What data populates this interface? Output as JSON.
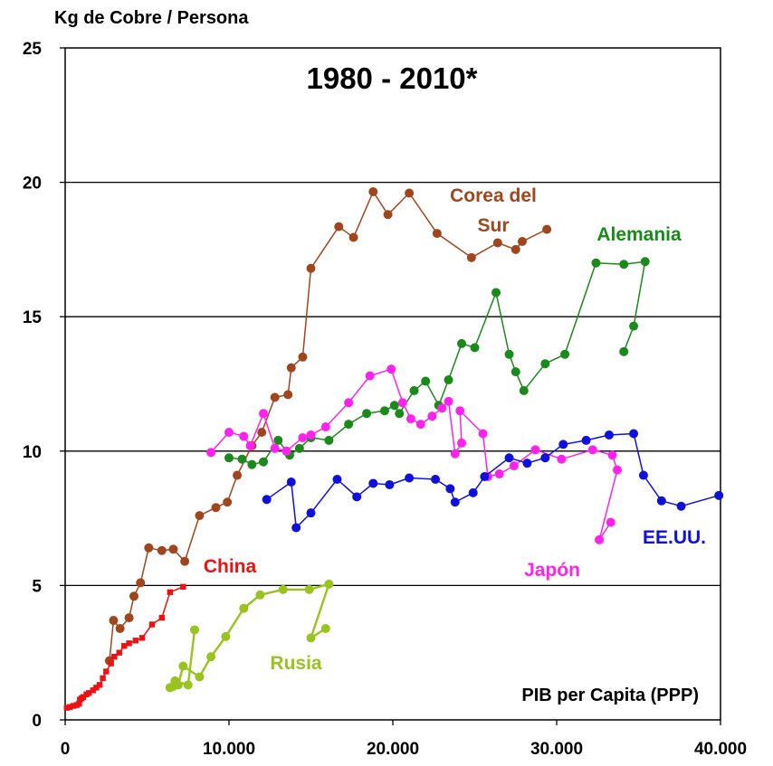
{
  "chart_data": {
    "type": "scatter",
    "title": "1980 - 2010*",
    "ylabel": "Kg de Cobre / Persona",
    "xlabel": "PIB per Capita  (PPP)",
    "xlim": [
      0,
      40000
    ],
    "ylim": [
      0,
      25
    ],
    "x_ticks": [
      0,
      10000,
      20000,
      30000,
      40000
    ],
    "x_tick_labels": [
      "0",
      "10.000",
      "20.000",
      "30.000",
      "40.000"
    ],
    "y_ticks": [
      0,
      5,
      10,
      15,
      20,
      25
    ],
    "y_tick_labels": [
      "0",
      "5",
      "10",
      "15",
      "20",
      "25"
    ],
    "grid": "horizontal",
    "series": [
      {
        "name": "Corea del Sur",
        "label_lines": [
          "Corea del",
          "Sur"
        ],
        "color": "#a0461e",
        "marker": "circle",
        "points": [
          [
            2700,
            2.2
          ],
          [
            2950,
            3.7
          ],
          [
            3350,
            3.4
          ],
          [
            3900,
            3.8
          ],
          [
            4200,
            4.6
          ],
          [
            4600,
            5.1
          ],
          [
            5100,
            6.4
          ],
          [
            5900,
            6.3
          ],
          [
            6600,
            6.35
          ],
          [
            7300,
            5.9
          ],
          [
            8200,
            7.6
          ],
          [
            9200,
            7.9
          ],
          [
            9900,
            8.1
          ],
          [
            10500,
            9.1
          ],
          [
            11400,
            10.2
          ],
          [
            12000,
            10.7
          ],
          [
            12800,
            12.0
          ],
          [
            13600,
            12.1
          ],
          [
            13800,
            13.1
          ],
          [
            14500,
            13.5
          ],
          [
            15000,
            16.8
          ],
          [
            16700,
            18.35
          ],
          [
            17600,
            17.95
          ],
          [
            18800,
            19.65
          ],
          [
            19700,
            18.8
          ],
          [
            21000,
            19.6
          ],
          [
            22700,
            18.1
          ],
          [
            24800,
            17.2
          ],
          [
            26400,
            17.75
          ],
          [
            27500,
            17.5
          ],
          [
            27900,
            17.8
          ],
          [
            29400,
            18.25
          ]
        ]
      },
      {
        "name": "Alemania",
        "color": "#1a8a1a",
        "marker": "circle",
        "points": [
          [
            10000,
            9.75
          ],
          [
            10800,
            9.7
          ],
          [
            11400,
            9.5
          ],
          [
            12100,
            9.6
          ],
          [
            13000,
            10.4
          ],
          [
            13700,
            9.85
          ],
          [
            14300,
            10.1
          ],
          [
            15000,
            10.5
          ],
          [
            16100,
            10.4
          ],
          [
            17300,
            11.0
          ],
          [
            18400,
            11.4
          ],
          [
            19500,
            11.5
          ],
          [
            20100,
            11.7
          ],
          [
            20400,
            11.4
          ],
          [
            21300,
            12.25
          ],
          [
            22000,
            12.6
          ],
          [
            22800,
            11.7
          ],
          [
            23400,
            12.65
          ],
          [
            24200,
            14.0
          ],
          [
            25000,
            13.85
          ],
          [
            26300,
            15.9
          ],
          [
            27100,
            13.6
          ],
          [
            27500,
            12.95
          ],
          [
            28000,
            12.25
          ],
          [
            29300,
            13.25
          ],
          [
            30500,
            13.6
          ],
          [
            32400,
            17.0
          ],
          [
            34100,
            16.95
          ],
          [
            35400,
            17.05
          ],
          [
            34700,
            14.65
          ],
          [
            34100,
            13.7
          ]
        ]
      },
      {
        "name": "Japón",
        "color": "#ff22ee",
        "marker": "circle",
        "points": [
          [
            8900,
            9.95
          ],
          [
            10000,
            10.7
          ],
          [
            10900,
            10.55
          ],
          [
            11300,
            10.2
          ],
          [
            12100,
            11.4
          ],
          [
            12800,
            10.1
          ],
          [
            13500,
            10.0
          ],
          [
            14500,
            10.5
          ],
          [
            15000,
            10.6
          ],
          [
            15900,
            10.9
          ],
          [
            17300,
            11.8
          ],
          [
            18600,
            12.8
          ],
          [
            19900,
            13.05
          ],
          [
            20600,
            11.8
          ],
          [
            21100,
            11.2
          ],
          [
            21700,
            11.0
          ],
          [
            22400,
            11.3
          ],
          [
            23000,
            11.6
          ],
          [
            23400,
            11.85
          ],
          [
            23800,
            9.9
          ],
          [
            24200,
            10.3
          ],
          [
            24100,
            11.5
          ],
          [
            25500,
            10.65
          ],
          [
            25800,
            9.05
          ],
          [
            26500,
            9.15
          ],
          [
            27400,
            9.45
          ],
          [
            28700,
            10.05
          ],
          [
            30300,
            9.7
          ],
          [
            32200,
            10.05
          ],
          [
            33400,
            9.85
          ],
          [
            33700,
            9.3
          ],
          [
            32600,
            6.7
          ],
          [
            33300,
            7.35
          ]
        ]
      },
      {
        "name": "EE.UU.",
        "color": "#1010dd",
        "marker": "circle",
        "points": [
          [
            12300,
            8.2
          ],
          [
            13800,
            8.85
          ],
          [
            14100,
            7.15
          ],
          [
            15000,
            7.7
          ],
          [
            16600,
            8.95
          ],
          [
            17800,
            8.3
          ],
          [
            18800,
            8.8
          ],
          [
            19800,
            8.75
          ],
          [
            21000,
            9.0
          ],
          [
            22600,
            8.95
          ],
          [
            23500,
            8.6
          ],
          [
            23800,
            8.1
          ],
          [
            24900,
            8.45
          ],
          [
            25600,
            9.05
          ],
          [
            27100,
            9.75
          ],
          [
            28200,
            9.55
          ],
          [
            29300,
            9.75
          ],
          [
            30400,
            10.25
          ],
          [
            31800,
            10.4
          ],
          [
            33200,
            10.6
          ],
          [
            34700,
            10.65
          ],
          [
            35300,
            9.1
          ],
          [
            36400,
            8.15
          ],
          [
            37600,
            7.95
          ],
          [
            39900,
            8.35
          ]
        ]
      },
      {
        "name": "China",
        "color": "#ee1111",
        "marker": "square",
        "points": [
          [
            100,
            0.45
          ],
          [
            300,
            0.48
          ],
          [
            500,
            0.52
          ],
          [
            700,
            0.55
          ],
          [
            850,
            0.6
          ],
          [
            900,
            0.75
          ],
          [
            1000,
            0.8
          ],
          [
            1100,
            0.85
          ],
          [
            1300,
            0.95
          ],
          [
            1450,
            1.0
          ],
          [
            1700,
            1.1
          ],
          [
            1900,
            1.2
          ],
          [
            2100,
            1.3
          ],
          [
            2300,
            1.55
          ],
          [
            2500,
            1.8
          ],
          [
            2800,
            2.1
          ],
          [
            3000,
            2.35
          ],
          [
            3300,
            2.5
          ],
          [
            3600,
            2.75
          ],
          [
            3900,
            2.85
          ],
          [
            4300,
            2.95
          ],
          [
            4700,
            3.05
          ],
          [
            5300,
            3.55
          ],
          [
            5900,
            3.8
          ],
          [
            6400,
            4.75
          ],
          [
            7200,
            4.95
          ]
        ]
      },
      {
        "name": "Rusia",
        "color": "#99c31e",
        "marker": "circle",
        "points": [
          [
            7900,
            3.35
          ],
          [
            7500,
            1.3
          ],
          [
            6700,
            1.45
          ],
          [
            6400,
            1.2
          ],
          [
            6600,
            1.25
          ],
          [
            6900,
            1.3
          ],
          [
            7200,
            2.0
          ],
          [
            8200,
            1.6
          ],
          [
            8900,
            2.35
          ],
          [
            9800,
            3.1
          ],
          [
            10900,
            4.15
          ],
          [
            11900,
            4.65
          ],
          [
            13300,
            4.85
          ],
          [
            14900,
            4.85
          ],
          [
            16100,
            5.05
          ],
          [
            15000,
            3.05
          ],
          [
            15900,
            3.4
          ]
        ]
      }
    ]
  }
}
